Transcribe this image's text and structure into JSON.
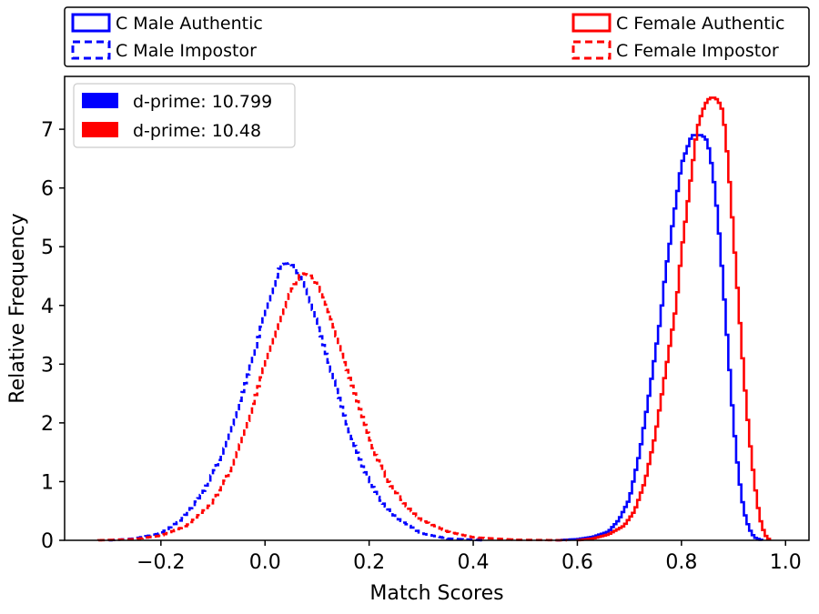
{
  "chart_data": {
    "type": "histogram",
    "xlabel": "Match Scores",
    "ylabel": "Relative Frequency",
    "xlim": [
      -0.385,
      1.045
    ],
    "ylim": [
      0,
      7.9
    ],
    "xticks": [
      -0.2,
      0.0,
      0.2,
      0.4,
      0.6,
      0.8,
      1.0
    ],
    "xtick_labels": [
      "−0.2",
      "0.0",
      "0.2",
      "0.4",
      "0.6",
      "0.8",
      "1.0"
    ],
    "yticks": [
      0,
      1,
      2,
      3,
      4,
      5,
      6,
      7
    ],
    "ytick_labels": [
      "0",
      "1",
      "2",
      "3",
      "4",
      "5",
      "6",
      "7"
    ],
    "series": [
      {
        "name": "C Male Authentic",
        "color": "#0000ff",
        "style": "solid",
        "points": [
          [
            0.56,
            0
          ],
          [
            0.6,
            0.02
          ],
          [
            0.63,
            0.06
          ],
          [
            0.66,
            0.15
          ],
          [
            0.68,
            0.35
          ],
          [
            0.7,
            0.7
          ],
          [
            0.72,
            1.5
          ],
          [
            0.74,
            2.6
          ],
          [
            0.76,
            3.8
          ],
          [
            0.77,
            4.6
          ],
          [
            0.78,
            5.2
          ],
          [
            0.79,
            5.8
          ],
          [
            0.8,
            6.4
          ],
          [
            0.82,
            6.9
          ],
          [
            0.84,
            6.9
          ],
          [
            0.85,
            6.8
          ],
          [
            0.86,
            6.3
          ],
          [
            0.87,
            5.5
          ],
          [
            0.88,
            4.4
          ],
          [
            0.89,
            3.2
          ],
          [
            0.9,
            2.0
          ],
          [
            0.91,
            1.1
          ],
          [
            0.92,
            0.5
          ],
          [
            0.93,
            0.2
          ],
          [
            0.94,
            0.05
          ],
          [
            0.955,
            0
          ]
        ]
      },
      {
        "name": "C Female Authentic",
        "color": "#ff0000",
        "style": "solid",
        "points": [
          [
            0.6,
            0
          ],
          [
            0.63,
            0.03
          ],
          [
            0.66,
            0.1
          ],
          [
            0.69,
            0.25
          ],
          [
            0.71,
            0.5
          ],
          [
            0.73,
            1.0
          ],
          [
            0.75,
            1.8
          ],
          [
            0.77,
            2.9
          ],
          [
            0.79,
            4.0
          ],
          [
            0.8,
            4.9
          ],
          [
            0.81,
            5.6
          ],
          [
            0.82,
            6.3
          ],
          [
            0.83,
            7.0
          ],
          [
            0.84,
            7.3
          ],
          [
            0.85,
            7.5
          ],
          [
            0.86,
            7.55
          ],
          [
            0.87,
            7.5
          ],
          [
            0.88,
            7.3
          ],
          [
            0.89,
            6.4
          ],
          [
            0.9,
            5.2
          ],
          [
            0.91,
            4.0
          ],
          [
            0.92,
            2.8
          ],
          [
            0.93,
            1.8
          ],
          [
            0.94,
            1.0
          ],
          [
            0.95,
            0.4
          ],
          [
            0.96,
            0.1
          ],
          [
            0.97,
            0
          ]
        ]
      },
      {
        "name": "C Male Impostor",
        "color": "#0000ff",
        "style": "dashed",
        "points": [
          [
            -0.3,
            0
          ],
          [
            -0.25,
            0.03
          ],
          [
            -0.2,
            0.12
          ],
          [
            -0.16,
            0.35
          ],
          [
            -0.12,
            0.8
          ],
          [
            -0.08,
            1.5
          ],
          [
            -0.05,
            2.3
          ],
          [
            -0.02,
            3.2
          ],
          [
            0.0,
            3.9
          ],
          [
            0.02,
            4.4
          ],
          [
            0.03,
            4.7
          ],
          [
            0.05,
            4.72
          ],
          [
            0.07,
            4.45
          ],
          [
            0.09,
            4.0
          ],
          [
            0.11,
            3.4
          ],
          [
            0.13,
            2.8
          ],
          [
            0.16,
            1.9
          ],
          [
            0.19,
            1.2
          ],
          [
            0.22,
            0.7
          ],
          [
            0.25,
            0.4
          ],
          [
            0.3,
            0.12
          ],
          [
            0.35,
            0.03
          ],
          [
            0.42,
            0
          ]
        ]
      },
      {
        "name": "C Female Impostor",
        "color": "#ff0000",
        "style": "dashed",
        "points": [
          [
            -0.32,
            0
          ],
          [
            -0.25,
            0.02
          ],
          [
            -0.2,
            0.08
          ],
          [
            -0.15,
            0.25
          ],
          [
            -0.1,
            0.65
          ],
          [
            -0.06,
            1.3
          ],
          [
            -0.03,
            2.1
          ],
          [
            0.0,
            3.0
          ],
          [
            0.03,
            3.8
          ],
          [
            0.05,
            4.25
          ],
          [
            0.07,
            4.55
          ],
          [
            0.09,
            4.5
          ],
          [
            0.11,
            4.2
          ],
          [
            0.13,
            3.7
          ],
          [
            0.15,
            3.1
          ],
          [
            0.18,
            2.3
          ],
          [
            0.21,
            1.5
          ],
          [
            0.24,
            0.95
          ],
          [
            0.27,
            0.6
          ],
          [
            0.3,
            0.35
          ],
          [
            0.35,
            0.15
          ],
          [
            0.4,
            0.05
          ],
          [
            0.48,
            0.01
          ],
          [
            0.58,
            0
          ]
        ]
      }
    ],
    "top_legend": {
      "entries": [
        {
          "label": "C Male Authentic",
          "color": "#0000ff",
          "style": "solid",
          "position": "top-left"
        },
        {
          "label": "C Male Impostor",
          "color": "#0000ff",
          "style": "dashed",
          "position": "bottom-left"
        },
        {
          "label": "C Female Authentic",
          "color": "#ff0000",
          "style": "solid",
          "position": "top-right"
        },
        {
          "label": "C Female Impostor",
          "color": "#ff0000",
          "style": "dashed",
          "position": "bottom-right"
        }
      ]
    },
    "inner_legend": {
      "position": "upper-left",
      "entries": [
        {
          "label": "d-prime: 10.799",
          "color": "#0000ff"
        },
        {
          "label": "d-prime: 10.48",
          "color": "#ff0000"
        }
      ]
    }
  }
}
